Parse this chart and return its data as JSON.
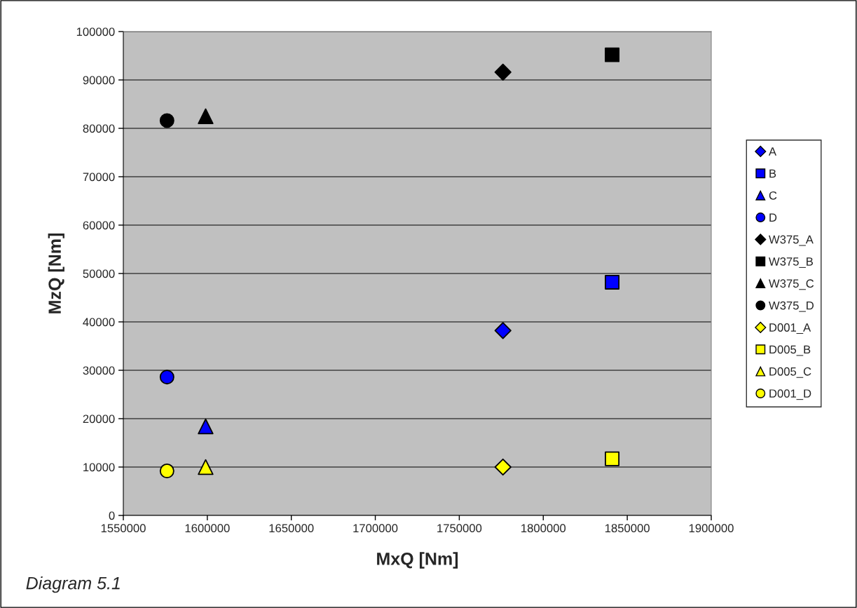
{
  "chart_data": {
    "type": "scatter",
    "xlabel": "MxQ [Nm]",
    "ylabel": "MzQ [Nm]",
    "annotations": [
      "Diagram 5.1"
    ],
    "xlim": [
      1550000,
      1900000
    ],
    "xticks": [
      1550000,
      1600000,
      1650000,
      1700000,
      1750000,
      1800000,
      1850000,
      1900000
    ],
    "ylim": [
      0,
      100000
    ],
    "yticks": [
      0,
      10000,
      20000,
      30000,
      40000,
      50000,
      60000,
      70000,
      80000,
      90000,
      100000
    ],
    "grid": "y",
    "legend": "right",
    "series": [
      {
        "name": "A",
        "color": "#0000ff",
        "marker": "diamond",
        "x": [
          1776000
        ],
        "values": [
          38200
        ]
      },
      {
        "name": "B",
        "color": "#0000ff",
        "marker": "square",
        "x": [
          1841000
        ],
        "values": [
          48200
        ]
      },
      {
        "name": "C",
        "color": "#0000ff",
        "marker": "triangle",
        "x": [
          1599000
        ],
        "values": [
          18400
        ]
      },
      {
        "name": "D",
        "color": "#0000ff",
        "marker": "circle",
        "x": [
          1576000
        ],
        "values": [
          28600
        ]
      },
      {
        "name": "W375_A",
        "color": "#000000",
        "marker": "diamond",
        "x": [
          1776000
        ],
        "values": [
          91600
        ]
      },
      {
        "name": "W375_B",
        "color": "#000000",
        "marker": "square",
        "x": [
          1841000
        ],
        "values": [
          95200
        ]
      },
      {
        "name": "W375_C",
        "color": "#000000",
        "marker": "triangle",
        "x": [
          1599000
        ],
        "values": [
          82500
        ]
      },
      {
        "name": "W375_D",
        "color": "#000000",
        "marker": "circle",
        "x": [
          1576000
        ],
        "values": [
          81600
        ]
      },
      {
        "name": "D001_A",
        "color": "#ffff00",
        "marker": "diamond",
        "x": [
          1776000
        ],
        "values": [
          10000
        ]
      },
      {
        "name": "D005_B",
        "color": "#ffff00",
        "marker": "square",
        "x": [
          1841000
        ],
        "values": [
          11700
        ]
      },
      {
        "name": "D005_C",
        "color": "#ffff00",
        "marker": "triangle",
        "x": [
          1599000
        ],
        "values": [
          10000
        ]
      },
      {
        "name": "D001_D",
        "color": "#ffff00",
        "marker": "circle",
        "x": [
          1576000
        ],
        "values": [
          9200
        ]
      }
    ]
  }
}
